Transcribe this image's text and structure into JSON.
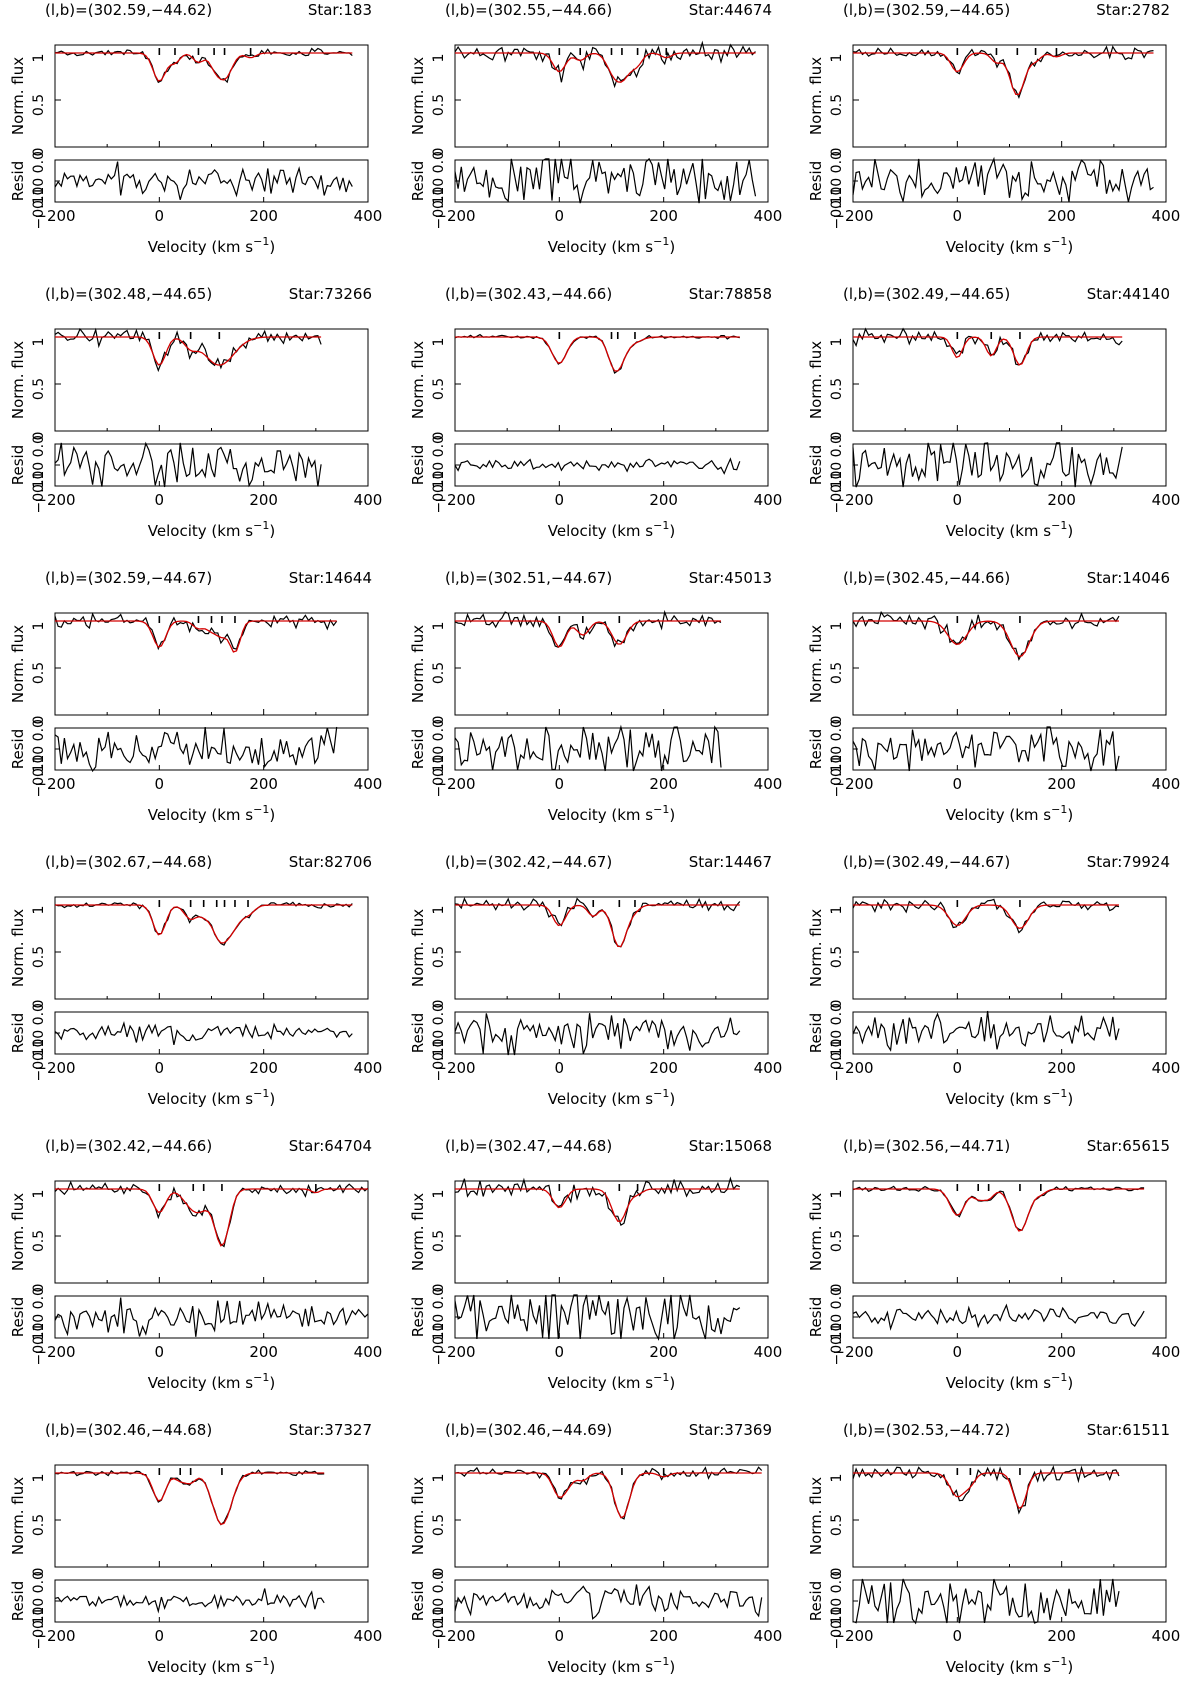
{
  "figure": {
    "labels": {
      "flux_ylabel": "Norm. flux",
      "resid_ylabel": "Resid",
      "xlabel": "Velocity (km s",
      "xlabel_sup": "−1",
      "xlabel_close": ")",
      "flux_ticks": [
        "1",
        "0.5",
        "0"
      ],
      "resid_ticks": [
        "0.10",
        "0.0",
        "−0.10"
      ],
      "x_ticks": [
        "−200",
        "0",
        "200",
        "400"
      ]
    },
    "colors": {
      "observed": "#000000",
      "model": "#d40000"
    }
  },
  "chart_data": [
    {
      "type": "line",
      "title": "(l,b)=(302.59,−44.62)",
      "star": "Star:183",
      "x_range": [
        -200,
        400
      ],
      "flux_range": [
        0,
        1
      ],
      "resid_range": [
        -0.1,
        0.1
      ],
      "data_x_max": 370,
      "noise_flux": 0.02,
      "noise_resid": 0.035,
      "components": [
        {
          "v": 0,
          "depth": 0.3,
          "width": 12
        },
        {
          "v": 30,
          "depth": 0.1,
          "width": 10
        },
        {
          "v": 75,
          "depth": 0.1,
          "width": 10
        },
        {
          "v": 105,
          "depth": 0.1,
          "width": 10
        },
        {
          "v": 125,
          "depth": 0.27,
          "width": 14
        },
        {
          "v": 175,
          "depth": 0.05,
          "width": 10
        }
      ],
      "series": [
        {
          "name": "Observed",
          "style": "black"
        },
        {
          "name": "Model",
          "style": "red"
        }
      ]
    },
    {
      "type": "line",
      "title": "(l,b)=(302.55,−44.66)",
      "star": "Star:44674",
      "x_range": [
        -200,
        400
      ],
      "flux_range": [
        0,
        1
      ],
      "resid_range": [
        -0.1,
        0.1
      ],
      "data_x_max": 380,
      "noise_flux": 0.05,
      "noise_resid": 0.07,
      "components": [
        {
          "v": 0,
          "depth": 0.2,
          "width": 12
        },
        {
          "v": 40,
          "depth": 0.08,
          "width": 10
        },
        {
          "v": 100,
          "depth": 0.1,
          "width": 12
        },
        {
          "v": 120,
          "depth": 0.28,
          "width": 16
        },
        {
          "v": 150,
          "depth": 0.1,
          "width": 10
        },
        {
          "v": 205,
          "depth": 0.05,
          "width": 10
        }
      ],
      "series": [
        {
          "name": "Observed",
          "style": "black"
        },
        {
          "name": "Model",
          "style": "red"
        }
      ]
    },
    {
      "type": "line",
      "title": "(l,b)=(302.59,−44.65)",
      "star": "Star:2782",
      "x_range": [
        -200,
        400
      ],
      "flux_range": [
        0,
        1
      ],
      "resid_range": [
        -0.1,
        0.1
      ],
      "data_x_max": 380,
      "noise_flux": 0.03,
      "noise_resid": 0.05,
      "components": [
        {
          "v": 0,
          "depth": 0.2,
          "width": 12
        },
        {
          "v": 75,
          "depth": 0.1,
          "width": 10
        },
        {
          "v": 115,
          "depth": 0.45,
          "width": 14
        },
        {
          "v": 150,
          "depth": 0.08,
          "width": 10
        },
        {
          "v": 190,
          "depth": 0.04,
          "width": 10
        }
      ],
      "series": [
        {
          "name": "Observed",
          "style": "black"
        },
        {
          "name": "Model",
          "style": "red"
        }
      ]
    },
    {
      "type": "line",
      "title": "(l,b)=(302.48,−44.65)",
      "star": "Star:73266",
      "x_range": [
        -200,
        400
      ],
      "flux_range": [
        0,
        1
      ],
      "resid_range": [
        -0.1,
        0.1
      ],
      "data_x_max": 315,
      "noise_flux": 0.04,
      "noise_resid": 0.06,
      "components": [
        {
          "v": 0,
          "depth": 0.3,
          "width": 12
        },
        {
          "v": 60,
          "depth": 0.1,
          "width": 12
        },
        {
          "v": 115,
          "depth": 0.3,
          "width": 28
        }
      ],
      "series": [
        {
          "name": "Observed",
          "style": "black"
        },
        {
          "name": "Model",
          "style": "red"
        }
      ]
    },
    {
      "type": "line",
      "title": "(l,b)=(302.43,−44.66)",
      "star": "Star:78858",
      "x_range": [
        -200,
        400
      ],
      "flux_range": [
        0,
        1
      ],
      "resid_range": [
        -0.1,
        0.1
      ],
      "data_x_max": 350,
      "noise_flux": 0.01,
      "noise_resid": 0.015,
      "components": [
        {
          "v": 0,
          "depth": 0.28,
          "width": 14
        },
        {
          "v": 100,
          "depth": 0.08,
          "width": 10
        },
        {
          "v": 112,
          "depth": 0.32,
          "width": 14
        },
        {
          "v": 145,
          "depth": 0.05,
          "width": 14
        }
      ],
      "series": [
        {
          "name": "Observed",
          "style": "black"
        },
        {
          "name": "Model",
          "style": "red"
        }
      ]
    },
    {
      "type": "line",
      "title": "(l,b)=(302.49,−44.65)",
      "star": "Star:44140",
      "x_range": [
        -200,
        400
      ],
      "flux_range": [
        0,
        1
      ],
      "resid_range": [
        -0.1,
        0.1
      ],
      "data_x_max": 320,
      "noise_flux": 0.04,
      "noise_resid": 0.06,
      "components": [
        {
          "v": 0,
          "depth": 0.22,
          "width": 10
        },
        {
          "v": 65,
          "depth": 0.2,
          "width": 10
        },
        {
          "v": 120,
          "depth": 0.3,
          "width": 12
        }
      ],
      "series": [
        {
          "name": "Observed",
          "style": "black"
        },
        {
          "name": "Model",
          "style": "red"
        }
      ]
    },
    {
      "type": "line",
      "title": "(l,b)=(302.59,−44.67)",
      "star": "Star:14644",
      "x_range": [
        -200,
        400
      ],
      "flux_range": [
        0,
        1
      ],
      "resid_range": [
        -0.1,
        0.1
      ],
      "data_x_max": 340,
      "noise_flux": 0.04,
      "noise_resid": 0.06,
      "components": [
        {
          "v": 0,
          "depth": 0.28,
          "width": 12
        },
        {
          "v": 75,
          "depth": 0.08,
          "width": 10
        },
        {
          "v": 100,
          "depth": 0.1,
          "width": 10
        },
        {
          "v": 120,
          "depth": 0.15,
          "width": 10
        },
        {
          "v": 145,
          "depth": 0.33,
          "width": 10
        }
      ],
      "series": [
        {
          "name": "Observed",
          "style": "black"
        },
        {
          "name": "Model",
          "style": "red"
        }
      ]
    },
    {
      "type": "line",
      "title": "(l,b)=(302.51,−44.67)",
      "star": "Star:45013",
      "x_range": [
        -200,
        400
      ],
      "flux_range": [
        0,
        1
      ],
      "resid_range": [
        -0.1,
        0.1
      ],
      "data_x_max": 315,
      "noise_flux": 0.04,
      "noise_resid": 0.06,
      "components": [
        {
          "v": 0,
          "depth": 0.28,
          "width": 12
        },
        {
          "v": 45,
          "depth": 0.15,
          "width": 12
        },
        {
          "v": 115,
          "depth": 0.25,
          "width": 14
        }
      ],
      "series": [
        {
          "name": "Observed",
          "style": "black"
        },
        {
          "name": "Model",
          "style": "red"
        }
      ]
    },
    {
      "type": "line",
      "title": "(l,b)=(302.45,−44.66)",
      "star": "Star:14046",
      "x_range": [
        -200,
        400
      ],
      "flux_range": [
        0,
        1
      ],
      "resid_range": [
        -0.1,
        0.1
      ],
      "data_x_max": 310,
      "noise_flux": 0.04,
      "noise_resid": 0.06,
      "components": [
        {
          "v": 0,
          "depth": 0.25,
          "width": 18
        },
        {
          "v": 120,
          "depth": 0.38,
          "width": 18
        }
      ],
      "series": [
        {
          "name": "Observed",
          "style": "black"
        },
        {
          "name": "Model",
          "style": "red"
        }
      ]
    },
    {
      "type": "line",
      "title": "(l,b)=(302.67,−44.68)",
      "star": "Star:82706",
      "x_range": [
        -200,
        400
      ],
      "flux_range": [
        0,
        1
      ],
      "resid_range": [
        -0.1,
        0.1
      ],
      "data_x_max": 370,
      "noise_flux": 0.015,
      "noise_resid": 0.02,
      "components": [
        {
          "v": 0,
          "depth": 0.32,
          "width": 12
        },
        {
          "v": 60,
          "depth": 0.15,
          "width": 12
        },
        {
          "v": 85,
          "depth": 0.08,
          "width": 10
        },
        {
          "v": 110,
          "depth": 0.2,
          "width": 14
        },
        {
          "v": 125,
          "depth": 0.25,
          "width": 14
        },
        {
          "v": 145,
          "depth": 0.15,
          "width": 12
        },
        {
          "v": 170,
          "depth": 0.1,
          "width": 12
        }
      ],
      "series": [
        {
          "name": "Observed",
          "style": "black"
        },
        {
          "name": "Model",
          "style": "red"
        }
      ]
    },
    {
      "type": "line",
      "title": "(l,b)=(302.42,−44.67)",
      "star": "Star:14467",
      "x_range": [
        -200,
        400
      ],
      "flux_range": [
        0,
        1
      ],
      "resid_range": [
        -0.1,
        0.1
      ],
      "data_x_max": 350,
      "noise_flux": 0.03,
      "noise_resid": 0.045,
      "components": [
        {
          "v": 0,
          "depth": 0.22,
          "width": 12
        },
        {
          "v": 65,
          "depth": 0.12,
          "width": 10
        },
        {
          "v": 115,
          "depth": 0.45,
          "width": 14
        },
        {
          "v": 145,
          "depth": 0.05,
          "width": 10
        }
      ],
      "series": [
        {
          "name": "Observed",
          "style": "black"
        },
        {
          "name": "Model",
          "style": "red"
        }
      ]
    },
    {
      "type": "line",
      "title": "(l,b)=(302.49,−44.67)",
      "star": "Star:79924",
      "x_range": [
        -200,
        400
      ],
      "flux_range": [
        0,
        1
      ],
      "resid_range": [
        -0.1,
        0.1
      ],
      "data_x_max": 315,
      "noise_flux": 0.03,
      "noise_resid": 0.045,
      "components": [
        {
          "v": 0,
          "depth": 0.22,
          "width": 16
        },
        {
          "v": 120,
          "depth": 0.25,
          "width": 16
        }
      ],
      "series": [
        {
          "name": "Observed",
          "style": "black"
        },
        {
          "name": "Model",
          "style": "red"
        }
      ]
    },
    {
      "type": "line",
      "title": "(l,b)=(302.42,−44.66)",
      "star": "Star:64704",
      "x_range": [
        -200,
        400
      ],
      "flux_range": [
        0,
        1
      ],
      "resid_range": [
        -0.1,
        0.1
      ],
      "data_x_max": 400,
      "noise_flux": 0.03,
      "noise_resid": 0.045,
      "components": [
        {
          "v": 0,
          "depth": 0.25,
          "width": 12
        },
        {
          "v": 65,
          "depth": 0.2,
          "width": 18
        },
        {
          "v": 85,
          "depth": 0.1,
          "width": 14
        },
        {
          "v": 120,
          "depth": 0.6,
          "width": 14
        },
        {
          "v": 300,
          "depth": 0.04,
          "width": 8
        }
      ],
      "series": [
        {
          "name": "Observed",
          "style": "black"
        },
        {
          "name": "Model",
          "style": "red"
        }
      ]
    },
    {
      "type": "line",
      "title": "(l,b)=(302.47,−44.68)",
      "star": "Star:15068",
      "x_range": [
        -200,
        400
      ],
      "flux_range": [
        0,
        1
      ],
      "resid_range": [
        -0.1,
        0.1
      ],
      "data_x_max": 350,
      "noise_flux": 0.05,
      "noise_resid": 0.07,
      "components": [
        {
          "v": 0,
          "depth": 0.2,
          "width": 12
        },
        {
          "v": 115,
          "depth": 0.35,
          "width": 14
        },
        {
          "v": 150,
          "depth": 0.05,
          "width": 10
        }
      ],
      "series": [
        {
          "name": "Observed",
          "style": "black"
        },
        {
          "name": "Model",
          "style": "red"
        }
      ]
    },
    {
      "type": "line",
      "title": "(l,b)=(302.56,−44.71)",
      "star": "Star:65615",
      "x_range": [
        -200,
        400
      ],
      "flux_range": [
        0,
        1
      ],
      "resid_range": [
        -0.1,
        0.1
      ],
      "data_x_max": 360,
      "noise_flux": 0.015,
      "noise_resid": 0.02,
      "components": [
        {
          "v": 0,
          "depth": 0.28,
          "width": 14
        },
        {
          "v": 40,
          "depth": 0.1,
          "width": 10
        },
        {
          "v": 60,
          "depth": 0.1,
          "width": 10
        },
        {
          "v": 120,
          "depth": 0.45,
          "width": 16
        },
        {
          "v": 160,
          "depth": 0.05,
          "width": 10
        }
      ],
      "series": [
        {
          "name": "Observed",
          "style": "black"
        },
        {
          "name": "Model",
          "style": "red"
        }
      ]
    },
    {
      "type": "line",
      "title": "(l,b)=(302.46,−44.68)",
      "star": "Star:37327",
      "x_range": [
        -200,
        400
      ],
      "flux_range": [
        0,
        1
      ],
      "resid_range": [
        -0.1,
        0.1
      ],
      "data_x_max": 320,
      "noise_flux": 0.015,
      "noise_resid": 0.02,
      "components": [
        {
          "v": 0,
          "depth": 0.3,
          "width": 12
        },
        {
          "v": 40,
          "depth": 0.08,
          "width": 10
        },
        {
          "v": 60,
          "depth": 0.1,
          "width": 10
        },
        {
          "v": 120,
          "depth": 0.55,
          "width": 18
        }
      ],
      "series": [
        {
          "name": "Observed",
          "style": "black"
        },
        {
          "name": "Model",
          "style": "red"
        }
      ]
    },
    {
      "type": "line",
      "title": "(l,b)=(302.46,−44.69)",
      "star": "Star:37369",
      "x_range": [
        -200,
        400
      ],
      "flux_range": [
        0,
        1
      ],
      "resid_range": [
        -0.1,
        0.1
      ],
      "data_x_max": 390,
      "noise_flux": 0.025,
      "noise_resid": 0.035,
      "components": [
        {
          "v": 0,
          "depth": 0.25,
          "width": 12
        },
        {
          "v": 20,
          "depth": 0.08,
          "width": 10
        },
        {
          "v": 45,
          "depth": 0.08,
          "width": 10
        },
        {
          "v": 120,
          "depth": 0.48,
          "width": 14
        },
        {
          "v": 200,
          "depth": 0.04,
          "width": 10
        }
      ],
      "series": [
        {
          "name": "Observed",
          "style": "black"
        },
        {
          "name": "Model",
          "style": "red"
        }
      ]
    },
    {
      "type": "line",
      "title": "(l,b)=(302.53,−44.72)",
      "star": "Star:61511",
      "x_range": [
        -200,
        400
      ],
      "flux_range": [
        0,
        1
      ],
      "resid_range": [
        -0.1,
        0.1
      ],
      "data_x_max": 310,
      "noise_flux": 0.04,
      "noise_resid": 0.06,
      "components": [
        {
          "v": 0,
          "depth": 0.25,
          "width": 14
        },
        {
          "v": 25,
          "depth": 0.1,
          "width": 10
        },
        {
          "v": 120,
          "depth": 0.38,
          "width": 12
        }
      ],
      "series": [
        {
          "name": "Observed",
          "style": "black"
        },
        {
          "name": "Model",
          "style": "red"
        }
      ]
    }
  ]
}
